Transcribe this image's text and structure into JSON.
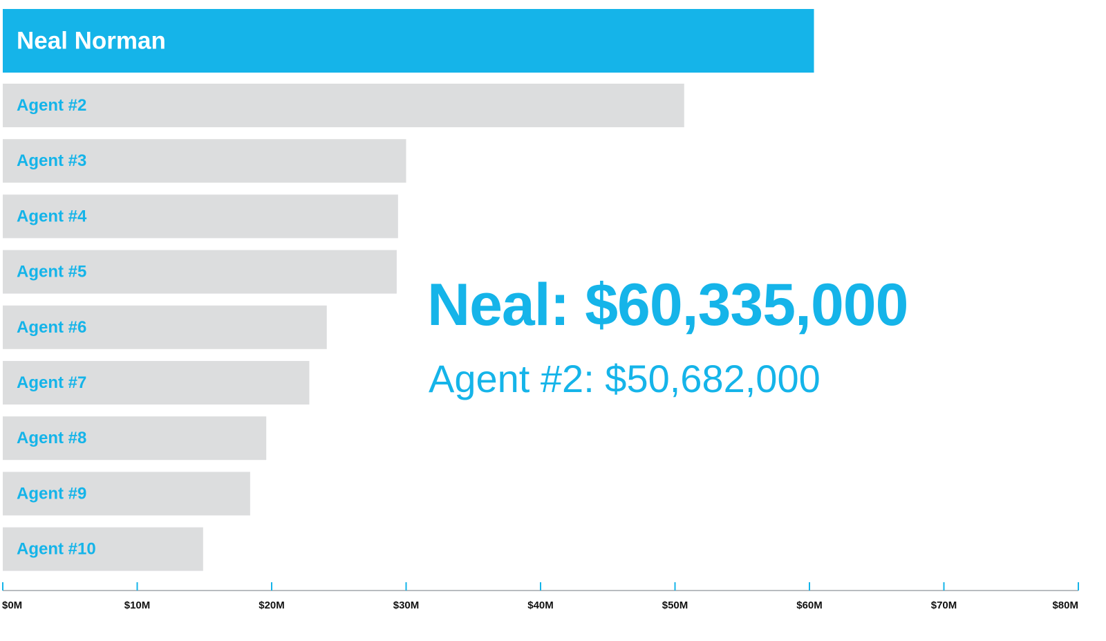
{
  "chart_data": {
    "type": "bar",
    "orientation": "horizontal",
    "categories": [
      "Neal Norman",
      "Agent #2",
      "Agent #3",
      "Agent #4",
      "Agent #5",
      "Agent #6",
      "Agent #7",
      "Agent #8",
      "Agent #9",
      "Agent #10"
    ],
    "values": [
      60.335,
      50.682,
      30.0,
      29.4,
      29.3,
      24.1,
      22.8,
      19.6,
      18.4,
      14.9
    ],
    "units": "$M",
    "xlim": [
      0,
      80
    ],
    "xticks": [
      "$0M",
      "$10M",
      "$20M",
      "$30M",
      "$40M",
      "$50M",
      "$60M",
      "$70M",
      "$80M"
    ],
    "highlight_index": 0,
    "grid": false,
    "annotations": {
      "primary": "Neal: $60,335,000",
      "secondary": "Agent #2: $50,682,000"
    },
    "colors": {
      "highlight": "#15b4e9",
      "bar": "#dcddde",
      "label": "#15b4e9",
      "axis": "#b8bcc0",
      "tick": "#15b4e9",
      "tick_label": "#111111"
    }
  }
}
